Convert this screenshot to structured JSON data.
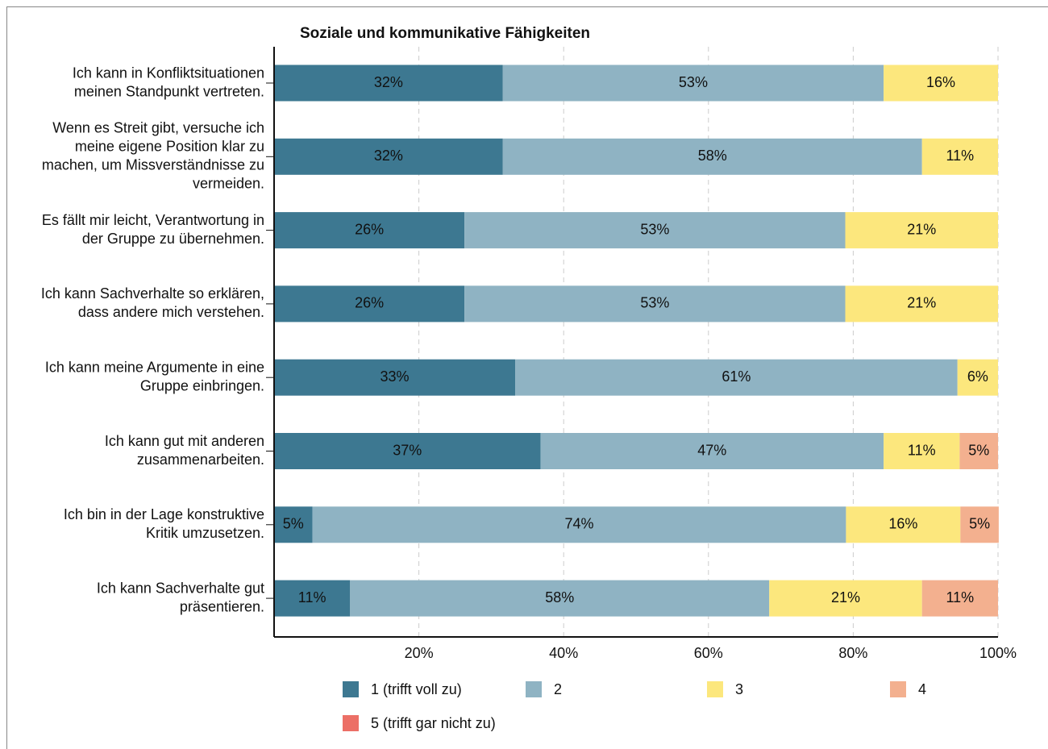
{
  "chart_data": {
    "type": "stacked-bar-horizontal",
    "title": "Soziale und kommunikative Fähigkeiten",
    "categories": [
      [
        "Ich kann in Konfliktsituationen",
        "meinen Standpunkt vertreten."
      ],
      [
        "Wenn es Streit gibt, versuche ich",
        "meine eigene Position klar zu",
        "machen, um Missverständnisse zu",
        "vermeiden."
      ],
      [
        "Es fällt mir leicht, Verantwortung in",
        "der Gruppe zu übernehmen."
      ],
      [
        "Ich kann Sachverhalte so erklären,",
        "dass andere mich verstehen."
      ],
      [
        "Ich kann meine Argumente in eine",
        "Gruppe einbringen."
      ],
      [
        "Ich kann gut mit anderen",
        "zusammenarbeiten."
      ],
      [
        "Ich bin in der Lage konstruktive",
        "Kritik umzusetzen."
      ],
      [
        "Ich kann Sachverhalte gut",
        "präsentieren."
      ]
    ],
    "series": [
      {
        "name": "1 (trifft voll zu)",
        "color": "#3d7891",
        "values": [
          31.6,
          31.6,
          26.3,
          26.3,
          33.3,
          36.8,
          5.3,
          10.5
        ],
        "value_labels": [
          "32%",
          "32%",
          "26%",
          "26%",
          "33%",
          "37%",
          "5%",
          "11%"
        ]
      },
      {
        "name": "2",
        "color": "#8fb3c3",
        "values": [
          52.6,
          57.9,
          52.6,
          52.6,
          61.1,
          47.4,
          73.7,
          57.9
        ],
        "value_labels": [
          "53%",
          "58%",
          "53%",
          "53%",
          "61%",
          "47%",
          "74%",
          "58%"
        ]
      },
      {
        "name": "3",
        "color": "#fce77d",
        "values": [
          15.8,
          10.5,
          21.1,
          21.1,
          5.6,
          10.5,
          15.8,
          21.1
        ],
        "value_labels": [
          "16%",
          "11%",
          "21%",
          "21%",
          "6%",
          "11%",
          "16%",
          "21%"
        ]
      },
      {
        "name": "4",
        "color": "#f3b08f",
        "values": [
          null,
          null,
          null,
          null,
          null,
          5.3,
          5.3,
          10.5
        ],
        "value_labels": [
          null,
          null,
          null,
          null,
          null,
          "5%",
          "5%",
          "11%"
        ]
      },
      {
        "name": "5 (trifft gar nicht zu)",
        "color": "#ec6f66",
        "values": [
          null,
          null,
          null,
          null,
          null,
          null,
          null,
          null
        ],
        "value_labels": [
          null,
          null,
          null,
          null,
          null,
          null,
          null,
          null
        ]
      }
    ],
    "xlim": [
      0,
      100
    ],
    "xticks": [
      {
        "value": 20,
        "label": "20%"
      },
      {
        "value": 40,
        "label": "40%"
      },
      {
        "value": 60,
        "label": "60%"
      },
      {
        "value": 80,
        "label": "80%"
      },
      {
        "value": 100,
        "label": "100%"
      }
    ],
    "grid": true
  }
}
